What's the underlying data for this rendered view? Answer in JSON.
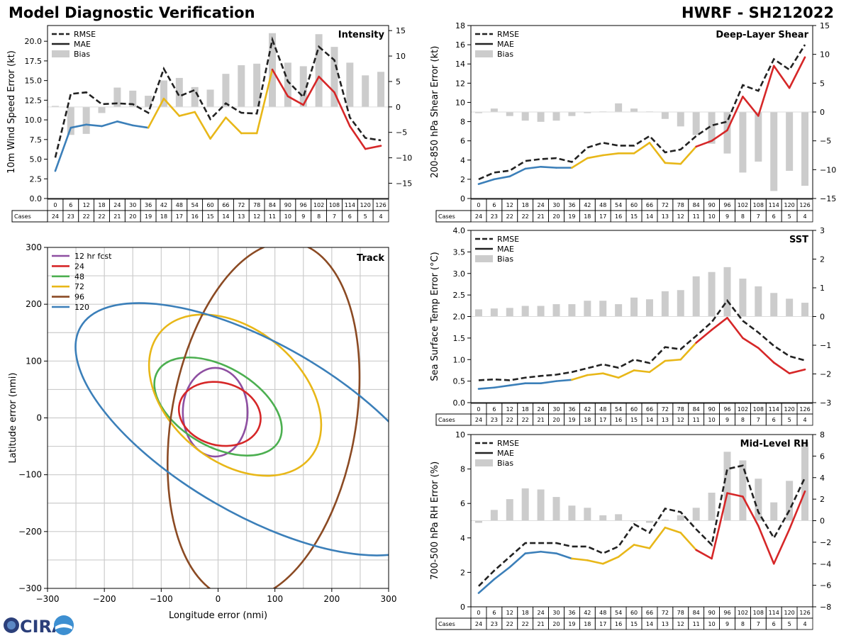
{
  "header": {
    "title": "Model Diagnostic Verification",
    "storm": "HWRF - SH212022"
  },
  "logo": {
    "text": "CIRA"
  },
  "colors": {
    "early": "#3b7fb9",
    "mid": "#e8b718",
    "late": "#d62728",
    "rmse": "#222222",
    "bias": "#cccccc",
    "grid": "#cccccc"
  },
  "table": {
    "cases_label": "Cases",
    "hours": [
      "0",
      "6",
      "12",
      "18",
      "24",
      "30",
      "36",
      "42",
      "48",
      "54",
      "60",
      "66",
      "72",
      "78",
      "84",
      "90",
      "96",
      "102",
      "108",
      "114",
      "120",
      "126"
    ],
    "cases": [
      "24",
      "23",
      "22",
      "22",
      "21",
      "20",
      "19",
      "18",
      "17",
      "16",
      "15",
      "14",
      "13",
      "12",
      "11",
      "10",
      "9",
      "8",
      "7",
      "6",
      "5",
      "4"
    ]
  },
  "legend": {
    "rmse": "RMSE",
    "mae": "MAE",
    "bias": "Bias"
  },
  "chart_data": [
    {
      "type": "line",
      "id": "intensity",
      "title": "Intensity",
      "ylabel": "10m Wind Speed Error (kt)",
      "ylim": [
        0,
        22
      ],
      "yticks": [
        0,
        2.5,
        5,
        7.5,
        10,
        12.5,
        15,
        17.5,
        20
      ],
      "ytick_labels": [
        "0.0",
        "2.5",
        "5.0",
        "7.5",
        "10.0",
        "12.5",
        "15.0",
        "17.5",
        "20.0"
      ],
      "y2lim": [
        -18,
        16
      ],
      "y2ticks": [
        -15,
        -10,
        -5,
        0,
        5,
        10,
        15
      ],
      "y2tick_labels": [
        "−15",
        "−10",
        "−5",
        "0",
        "5",
        "10",
        "15"
      ],
      "x": [
        0,
        6,
        12,
        18,
        24,
        30,
        36,
        42,
        48,
        54,
        60,
        66,
        72,
        78,
        84,
        90,
        96,
        102,
        108,
        114,
        120,
        126
      ],
      "rmse": [
        5.2,
        13.3,
        13.5,
        12.0,
        12.1,
        12.0,
        10.9,
        16.5,
        13.0,
        13.8,
        10.1,
        12.1,
        10.9,
        10.8,
        20.2,
        14.9,
        12.9,
        19.3,
        17.6,
        10.3,
        7.7,
        7.4
      ],
      "mae": [
        3.5,
        9.0,
        9.4,
        9.2,
        9.8,
        9.3,
        9.0,
        12.7,
        10.5,
        11.0,
        7.6,
        10.3,
        8.3,
        8.3,
        16.4,
        13.0,
        11.9,
        15.5,
        13.5,
        9.2,
        6.3,
        6.7
      ],
      "bias": [
        0.2,
        -5.5,
        -5.3,
        -1.2,
        3.8,
        3.2,
        2.2,
        5.2,
        5.7,
        3.9,
        3.4,
        6.5,
        8.2,
        8.5,
        14.5,
        8.7,
        8.0,
        14.3,
        11.8,
        8.7,
        6.2,
        6.9
      ]
    },
    {
      "type": "line",
      "id": "shear",
      "title": "Deep-Layer Shear",
      "ylabel": "200-850 hPa Shear Error (kt)",
      "ylim": [
        0,
        18
      ],
      "yticks": [
        0,
        2,
        4,
        6,
        8,
        10,
        12,
        14,
        16,
        18
      ],
      "ytick_labels": [
        "0",
        "2",
        "4",
        "6",
        "8",
        "10",
        "12",
        "14",
        "16",
        "18"
      ],
      "y2lim": [
        -15,
        15
      ],
      "y2ticks": [
        -15,
        -10,
        -5,
        0,
        5,
        10,
        15
      ],
      "y2tick_labels": [
        "−15",
        "−10",
        "−5",
        "0",
        "5",
        "10",
        "15"
      ],
      "x": [
        0,
        6,
        12,
        18,
        24,
        30,
        36,
        42,
        48,
        54,
        60,
        66,
        72,
        78,
        84,
        90,
        96,
        102,
        108,
        114,
        120,
        126
      ],
      "rmse": [
        2.0,
        2.7,
        2.9,
        3.9,
        4.1,
        4.2,
        3.8,
        5.3,
        5.8,
        5.5,
        5.5,
        6.5,
        4.8,
        5.1,
        6.5,
        7.6,
        8.0,
        11.8,
        11.2,
        14.5,
        13.4,
        16.0
      ],
      "mae": [
        1.5,
        2.0,
        2.3,
        3.1,
        3.3,
        3.2,
        3.2,
        4.2,
        4.5,
        4.7,
        4.7,
        5.8,
        3.7,
        3.6,
        5.4,
        6.0,
        7.1,
        10.6,
        8.6,
        13.8,
        11.5,
        14.7
      ],
      "bias": [
        -0.2,
        0.6,
        -0.7,
        -1.5,
        -1.7,
        -1.5,
        -0.7,
        -0.2,
        0.1,
        1.5,
        0.6,
        0.1,
        -1.2,
        -2.5,
        -4.0,
        -5.5,
        -7.2,
        -10.5,
        -8.6,
        -13.7,
        -10.2,
        -12.8
      ]
    },
    {
      "type": "line",
      "id": "sst",
      "title": "SST",
      "ylabel": "Sea Surface Temp Error (°C)",
      "ylim": [
        0,
        4
      ],
      "yticks": [
        0,
        0.5,
        1,
        1.5,
        2,
        2.5,
        3,
        3.5,
        4
      ],
      "ytick_labels": [
        "0.0",
        "0.5",
        "1.0",
        "1.5",
        "2.0",
        "2.5",
        "3.0",
        "3.5",
        "4.0"
      ],
      "y2lim": [
        -3,
        3
      ],
      "y2ticks": [
        -3,
        -2,
        -1,
        0,
        1,
        2,
        3
      ],
      "y2tick_labels": [
        "−3",
        "−2",
        "−1",
        "0",
        "1",
        "2",
        "3"
      ],
      "x": [
        0,
        6,
        12,
        18,
        24,
        30,
        36,
        42,
        48,
        54,
        60,
        66,
        72,
        78,
        84,
        90,
        96,
        102,
        108,
        114,
        120,
        126
      ],
      "rmse": [
        0.52,
        0.54,
        0.52,
        0.58,
        0.62,
        0.65,
        0.71,
        0.8,
        0.89,
        0.81,
        1.0,
        0.92,
        1.29,
        1.24,
        1.55,
        1.87,
        2.37,
        1.9,
        1.63,
        1.32,
        1.08,
        0.98
      ],
      "mae": [
        0.32,
        0.35,
        0.4,
        0.45,
        0.45,
        0.5,
        0.53,
        0.64,
        0.68,
        0.58,
        0.75,
        0.71,
        0.97,
        1.0,
        1.39,
        1.69,
        1.97,
        1.5,
        1.27,
        0.93,
        0.68,
        0.77
      ],
      "bias": [
        0.25,
        0.28,
        0.3,
        0.37,
        0.37,
        0.43,
        0.43,
        0.55,
        0.55,
        0.43,
        0.66,
        0.6,
        0.88,
        0.92,
        1.4,
        1.55,
        1.72,
        1.32,
        1.05,
        0.82,
        0.62,
        0.48
      ]
    },
    {
      "type": "line",
      "id": "rh",
      "title": "Mid-Level RH",
      "ylabel": "700-500 hPa RH Error (%)",
      "ylim": [
        0,
        10
      ],
      "yticks": [
        0,
        2,
        4,
        6,
        8,
        10
      ],
      "ytick_labels": [
        "0",
        "2",
        "4",
        "6",
        "8",
        "10"
      ],
      "y2lim": [
        -8,
        8
      ],
      "y2ticks": [
        -8,
        -6,
        -4,
        -2,
        0,
        2,
        4,
        6,
        8
      ],
      "y2tick_labels": [
        "−8",
        "−6",
        "−4",
        "−2",
        "0",
        "2",
        "4",
        "6",
        "8"
      ],
      "x": [
        0,
        6,
        12,
        18,
        24,
        30,
        36,
        42,
        48,
        54,
        60,
        66,
        72,
        78,
        84,
        90,
        96,
        102,
        108,
        114,
        120,
        126
      ],
      "rmse": [
        1.2,
        2.1,
        2.9,
        3.7,
        3.7,
        3.7,
        3.5,
        3.5,
        3.1,
        3.5,
        4.8,
        4.3,
        5.7,
        5.5,
        4.5,
        3.6,
        8.0,
        8.2,
        5.5,
        4.0,
        5.6,
        7.5
      ],
      "mae": [
        0.8,
        1.6,
        2.3,
        3.1,
        3.2,
        3.1,
        2.8,
        2.7,
        2.5,
        2.9,
        3.6,
        3.4,
        4.6,
        4.3,
        3.3,
        2.8,
        6.6,
        6.4,
        4.7,
        2.5,
        4.5,
        6.7
      ],
      "bias": [
        -0.2,
        1.0,
        2.0,
        3.0,
        2.9,
        2.2,
        1.4,
        1.2,
        0.5,
        0.6,
        0.0,
        -0.2,
        0.1,
        0.5,
        1.2,
        2.6,
        6.4,
        5.6,
        3.9,
        1.7,
        3.7,
        7.3
      ]
    },
    {
      "type": "scatter",
      "id": "track",
      "title": "Track",
      "xlabel": "Longitude error (nmi)",
      "ylabel": "Latitude error (nmi)",
      "xlim": [
        -300,
        300
      ],
      "ylim": [
        -300,
        300
      ],
      "xticks": [
        -300,
        -200,
        -100,
        0,
        100,
        200,
        300
      ],
      "xtick_labels": [
        "−300",
        "−200",
        "−100",
        "0",
        "100",
        "200",
        "300"
      ],
      "yticks": [
        -300,
        -200,
        -100,
        0,
        100,
        200,
        300
      ],
      "ytick_labels": [
        "−300",
        "−200",
        "−100",
        "0",
        "100",
        "200",
        "300"
      ],
      "ellipses": [
        {
          "label": "12 hr fcst",
          "color": "#8e4fa1",
          "cx": -5,
          "cy": 10,
          "a": 57,
          "b": 78,
          "angle_deg": 0
        },
        {
          "label": "24",
          "color": "#d62728",
          "cx": 3,
          "cy": 7,
          "a": 73,
          "b": 55,
          "angle_deg": -15
        },
        {
          "label": "48",
          "color": "#4caf50",
          "cx": 0,
          "cy": 20,
          "a": 123,
          "b": 70,
          "angle_deg": -30
        },
        {
          "label": "72",
          "color": "#e8b718",
          "cx": 30,
          "cy": 40,
          "a": 172,
          "b": 116,
          "angle_deg": -40
        },
        {
          "label": "96",
          "color": "#8b4a23",
          "cx": 80,
          "cy": -5,
          "a": 318,
          "b": 162,
          "angle_deg": 80
        },
        {
          "label": "120",
          "color": "#3b7fb9",
          "cx": 70,
          "cy": -20,
          "a": 360,
          "b": 150,
          "angle_deg": -30
        }
      ]
    }
  ]
}
